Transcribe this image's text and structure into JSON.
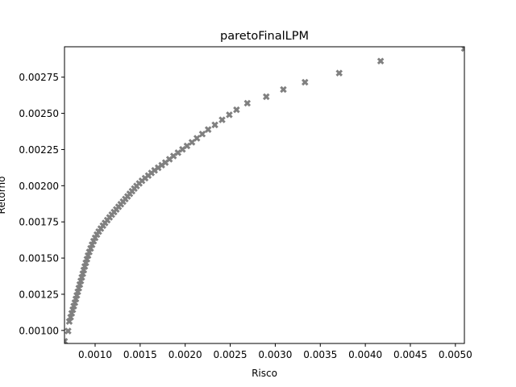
{
  "chart_data": {
    "type": "scatter",
    "title": "paretoFinalLPM",
    "xlabel": "Risco",
    "ylabel": "Retorno",
    "xlim": [
      0.00066,
      0.0051
    ],
    "ylim": [
      0.00091,
      0.00296
    ],
    "xticks": [
      0.001,
      0.0015,
      0.002,
      0.0025,
      0.003,
      0.0035,
      0.004,
      0.0045,
      0.005
    ],
    "xtick_labels": [
      "0.0010",
      "0.0015",
      "0.0020",
      "0.0025",
      "0.0030",
      "0.0035",
      "0.0040",
      "0.0045",
      "0.0050"
    ],
    "yticks": [
      0.001,
      0.00125,
      0.0015,
      0.00175,
      0.002,
      0.00225,
      0.0025,
      0.00275
    ],
    "ytick_labels": [
      "0.00100",
      "0.00125",
      "0.00150",
      "0.00175",
      "0.00200",
      "0.00225",
      "0.00250",
      "0.00275"
    ],
    "marker": "x",
    "marker_color": "#808080",
    "grid": false,
    "points": [
      [
        0.000661,
        0.000925
      ],
      [
        0.0007,
        0.000996
      ],
      [
        0.000713,
        0.001062
      ],
      [
        0.000728,
        0.001092
      ],
      [
        0.00074,
        0.001118
      ],
      [
        0.000752,
        0.001143
      ],
      [
        0.000763,
        0.001168
      ],
      [
        0.000775,
        0.001192
      ],
      [
        0.000786,
        0.001217
      ],
      [
        0.000797,
        0.001242
      ],
      [
        0.000808,
        0.001267
      ],
      [
        0.000819,
        0.001292
      ],
      [
        0.00083,
        0.001317
      ],
      [
        0.000841,
        0.001342
      ],
      [
        0.000852,
        0.001367
      ],
      [
        0.000863,
        0.001392
      ],
      [
        0.000874,
        0.001417
      ],
      [
        0.000885,
        0.001442
      ],
      [
        0.000897,
        0.001467
      ],
      [
        0.000909,
        0.001492
      ],
      [
        0.000921,
        0.001517
      ],
      [
        0.000935,
        0.001542
      ],
      [
        0.00095,
        0.001567
      ],
      [
        0.000966,
        0.001592
      ],
      [
        0.000983,
        0.001617
      ],
      [
        0.001,
        0.00164
      ],
      [
        0.00102,
        0.001662
      ],
      [
        0.00104,
        0.001683
      ],
      [
        0.001063,
        0.001704
      ],
      [
        0.001087,
        0.001724
      ],
      [
        0.00111,
        0.001743
      ],
      [
        0.001135,
        0.001762
      ],
      [
        0.00116,
        0.001781
      ],
      [
        0.001185,
        0.0018
      ],
      [
        0.00121,
        0.001818
      ],
      [
        0.001235,
        0.001836
      ],
      [
        0.00126,
        0.001854
      ],
      [
        0.001285,
        0.001872
      ],
      [
        0.00131,
        0.00189
      ],
      [
        0.001335,
        0.001908
      ],
      [
        0.00136,
        0.001926
      ],
      [
        0.001385,
        0.001944
      ],
      [
        0.00141,
        0.001962
      ],
      [
        0.001435,
        0.00198
      ],
      [
        0.00146,
        0.001998
      ],
      [
        0.00149,
        0.002016
      ],
      [
        0.00152,
        0.002034
      ],
      [
        0.001555,
        0.002052
      ],
      [
        0.00159,
        0.00207
      ],
      [
        0.001625,
        0.002088
      ],
      [
        0.00166,
        0.002106
      ],
      [
        0.0017,
        0.002124
      ],
      [
        0.00174,
        0.002142
      ],
      [
        0.00178,
        0.00216
      ],
      [
        0.001825,
        0.002183
      ],
      [
        0.00187,
        0.002205
      ],
      [
        0.00192,
        0.002228
      ],
      [
        0.00197,
        0.002251
      ],
      [
        0.00202,
        0.002275
      ],
      [
        0.002075,
        0.0023
      ],
      [
        0.00213,
        0.002328
      ],
      [
        0.00219,
        0.002357
      ],
      [
        0.002255,
        0.002388
      ],
      [
        0.00233,
        0.00242
      ],
      [
        0.00241,
        0.002455
      ],
      [
        0.00249,
        0.00249
      ],
      [
        0.00257,
        0.002525
      ],
      [
        0.00269,
        0.00257
      ],
      [
        0.0029,
        0.002615
      ],
      [
        0.00309,
        0.002665
      ],
      [
        0.00333,
        0.002715
      ],
      [
        0.00371,
        0.002778
      ],
      [
        0.00417,
        0.002861
      ],
      [
        0.0051,
        0.002948
      ]
    ]
  }
}
